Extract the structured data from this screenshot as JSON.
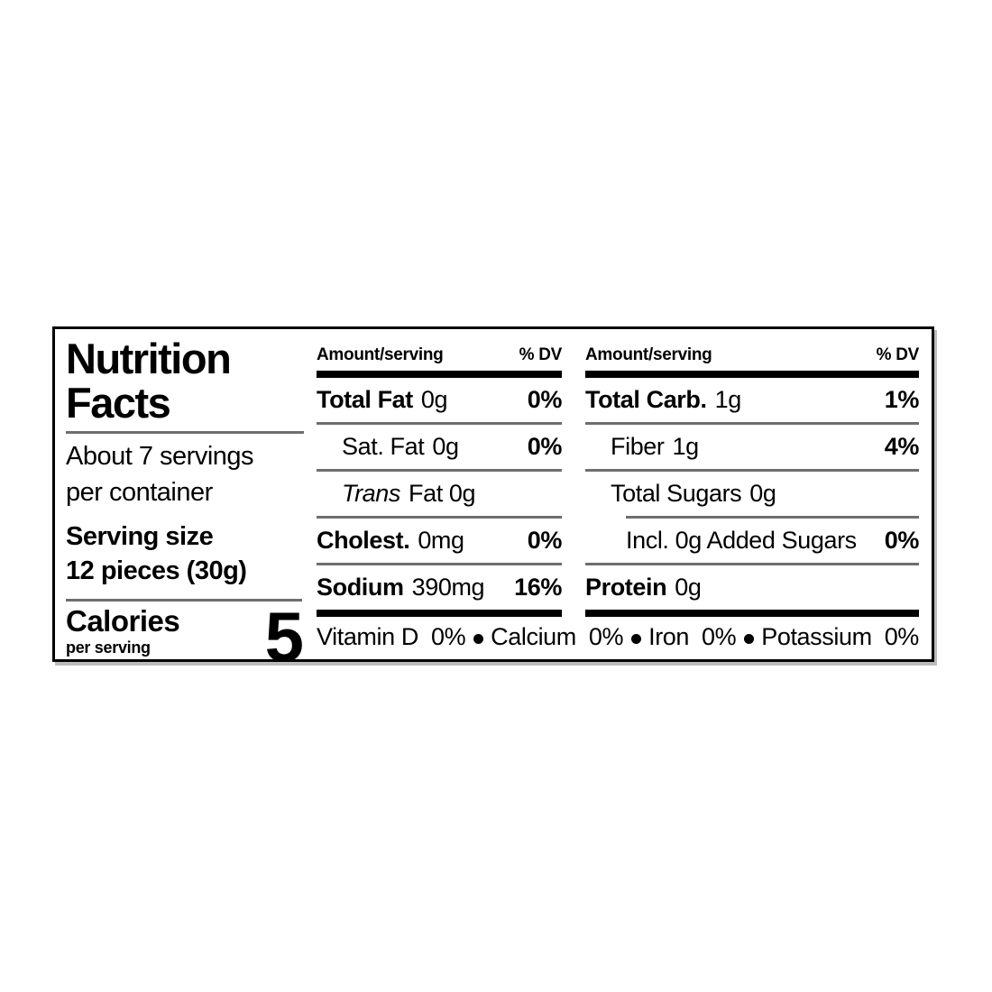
{
  "label": {
    "title_line1": "Nutrition",
    "title_line2": "Facts",
    "servings_line1": "About 7 servings",
    "servings_line2": "per container",
    "serving_size_label": "Serving size",
    "serving_size_value": "12 pieces (30g)",
    "calories_label": "Calories",
    "calories_sublabel": "per serving",
    "calories_value": "5",
    "columns": [
      {
        "header_amount": "Amount/serving",
        "header_dv": "% DV",
        "rows": [
          {
            "name": "Total Fat",
            "value": "0g",
            "dv": "0%"
          },
          {
            "name": "Sat. Fat",
            "value": "0g",
            "dv": "0%"
          },
          {
            "name": "Trans",
            "value": "Fat 0g",
            "dv": ""
          },
          {
            "name": "Cholest.",
            "value": "0mg",
            "dv": "0%"
          },
          {
            "name": "Sodium",
            "value": "390mg",
            "dv": "16%"
          }
        ]
      },
      {
        "header_amount": "Amount/serving",
        "header_dv": "% DV",
        "rows": [
          {
            "name": "Total Carb.",
            "value": "1g",
            "dv": "1%"
          },
          {
            "name": "Fiber",
            "value": "1g",
            "dv": "4%"
          },
          {
            "name": "Total Sugars",
            "value": "0g",
            "dv": ""
          },
          {
            "name": "Incl. 0g Added Sugars",
            "value": "",
            "dv": "0%"
          },
          {
            "name": "Protein",
            "value": "0g",
            "dv": ""
          }
        ]
      }
    ],
    "micronutrients": [
      {
        "name": "Vitamin D",
        "dv": "0%"
      },
      {
        "name": "Calcium",
        "dv": "0%"
      },
      {
        "name": "Iron",
        "dv": "0%"
      },
      {
        "name": "Potassium",
        "dv": "0%"
      }
    ],
    "colors": {
      "text": "#000000",
      "background": "#ffffff"
    }
  }
}
